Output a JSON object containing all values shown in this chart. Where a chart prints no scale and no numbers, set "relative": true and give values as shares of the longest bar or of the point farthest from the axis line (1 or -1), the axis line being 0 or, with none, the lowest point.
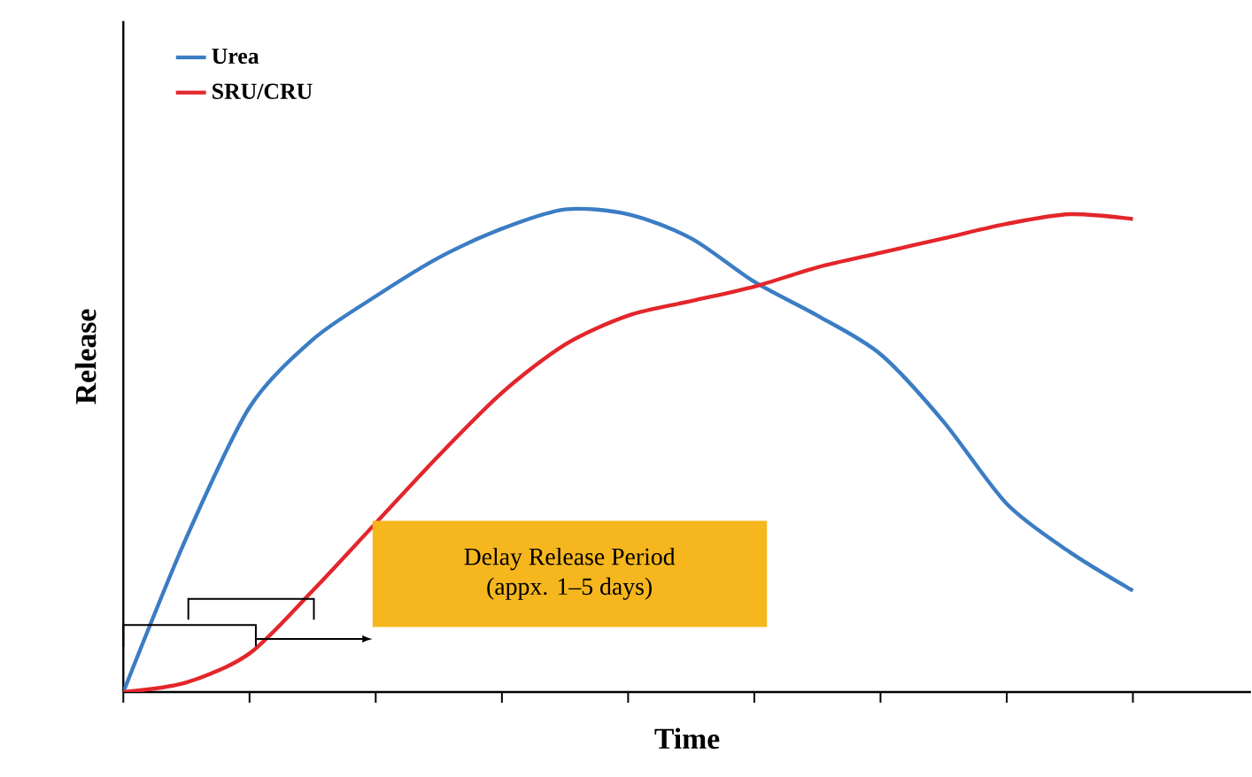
{
  "chart_data": {
    "type": "line",
    "relative": true,
    "xlabel": "Time",
    "ylabel": "Release",
    "legend": "top left",
    "tick_labels": false,
    "marker": "none",
    "categories": [
      null,
      null,
      null,
      null,
      null,
      null,
      null,
      null,
      null,
      null,
      null,
      null,
      null,
      null,
      null,
      null,
      null
    ],
    "series": [
      {
        "name": "Urea",
        "color": "#3b7dc4",
        "values": [
          0,
          0.32,
          0.59,
          0.73,
          0.82,
          0.9,
          0.96,
          1.0,
          0.99,
          0.94,
          0.85,
          0.78,
          0.7,
          0.56,
          0.39,
          0.29,
          0.21
        ]
      },
      {
        "name": "SRU/CRU",
        "color": "#e3262b",
        "values": [
          0,
          0.02,
          0.08,
          0.21,
          0.35,
          0.49,
          0.62,
          0.72,
          0.78,
          0.81,
          0.84,
          0.88,
          0.91,
          0.94,
          0.97,
          0.99,
          0.98
        ]
      }
    ],
    "annotations": [
      "Delay Release Period",
      "(appx. 1–5 days)"
    ]
  }
}
